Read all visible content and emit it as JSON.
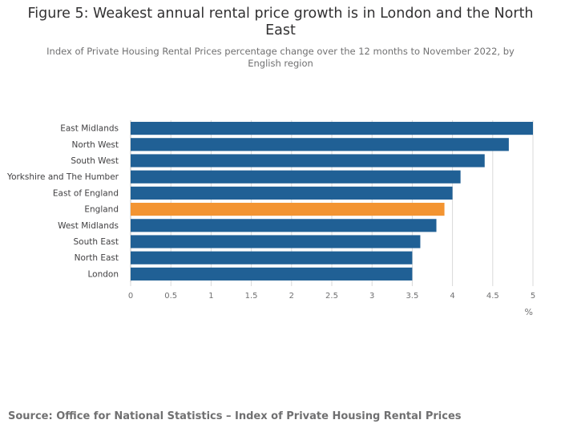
{
  "header": {
    "title": "Figure 5: Weakest annual rental price growth is in London and the North East",
    "subtitle": "Index of Private Housing Rental Prices percentage change over the 12 months to November 2022, by English region"
  },
  "footer": {
    "source": "Source: Office for National Statistics – Index of Private Housing Rental Prices"
  },
  "colors": {
    "bar": "#206095",
    "highlight": "#f39431",
    "grid": "#d9d9d9",
    "tick_text": "#707071"
  },
  "chart_data": {
    "type": "bar",
    "orientation": "horizontal",
    "categories": [
      "East Midlands",
      "North West",
      "South West",
      "Yorkshire and The Humber",
      "East of England",
      "England",
      "West Midlands",
      "South East",
      "North East",
      "London"
    ],
    "values": [
      5.0,
      4.7,
      4.4,
      4.1,
      4.0,
      3.9,
      3.8,
      3.6,
      3.5,
      3.5
    ],
    "highlight_category": "England",
    "x_ticks": [
      0,
      0.5,
      1,
      1.5,
      2,
      2.5,
      3,
      3.5,
      4,
      4.5,
      5
    ],
    "x_tick_labels": [
      "0",
      "0.5",
      "1",
      "1.5",
      "2",
      "2.5",
      "3",
      "3.5",
      "4",
      "4.5",
      "5"
    ],
    "xlabel": "%",
    "xlim": [
      0,
      5
    ],
    "grid": "vertical"
  }
}
